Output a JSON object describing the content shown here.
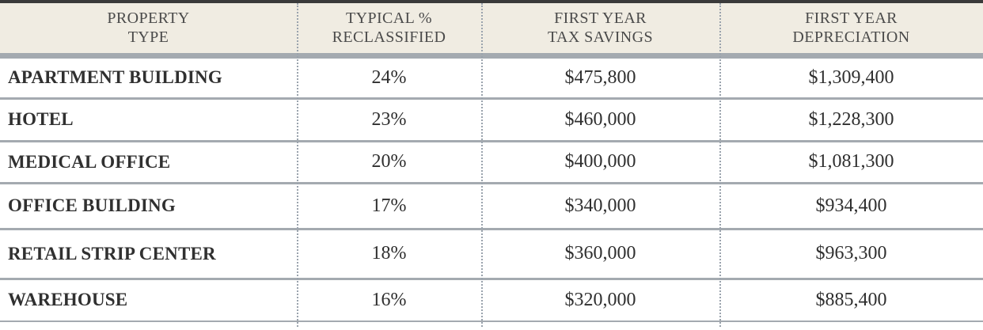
{
  "table": {
    "headers": [
      [
        "PROPERTY",
        "TYPE"
      ],
      [
        "TYPICAL %",
        "RECLASSIFIED"
      ],
      [
        "FIRST YEAR",
        "TAX SAVINGS"
      ],
      [
        "FIRST YEAR",
        "DEPRECIATION"
      ]
    ],
    "rows": [
      [
        "APARTMENT BUILDING",
        "24%",
        "$475,800",
        "$1,309,400"
      ],
      [
        "HOTEL",
        "23%",
        "$460,000",
        "$1,228,300"
      ],
      [
        "MEDICAL OFFICE",
        "20%",
        "$400,000",
        "$1,081,300"
      ],
      [
        "OFFICE BUILDING",
        "17%",
        "$340,000",
        "$934,400"
      ],
      [
        "RETAIL STRIP CENTER",
        "18%",
        "$360,000",
        "$963,300"
      ],
      [
        "WAREHOUSE",
        "16%",
        "$320,000",
        "$885,400"
      ]
    ]
  },
  "colors": {
    "header_bg": "#f0ece2",
    "rule": "#a4aab0",
    "top_rule": "#3a3a3a",
    "text": "#2f2f2f"
  }
}
